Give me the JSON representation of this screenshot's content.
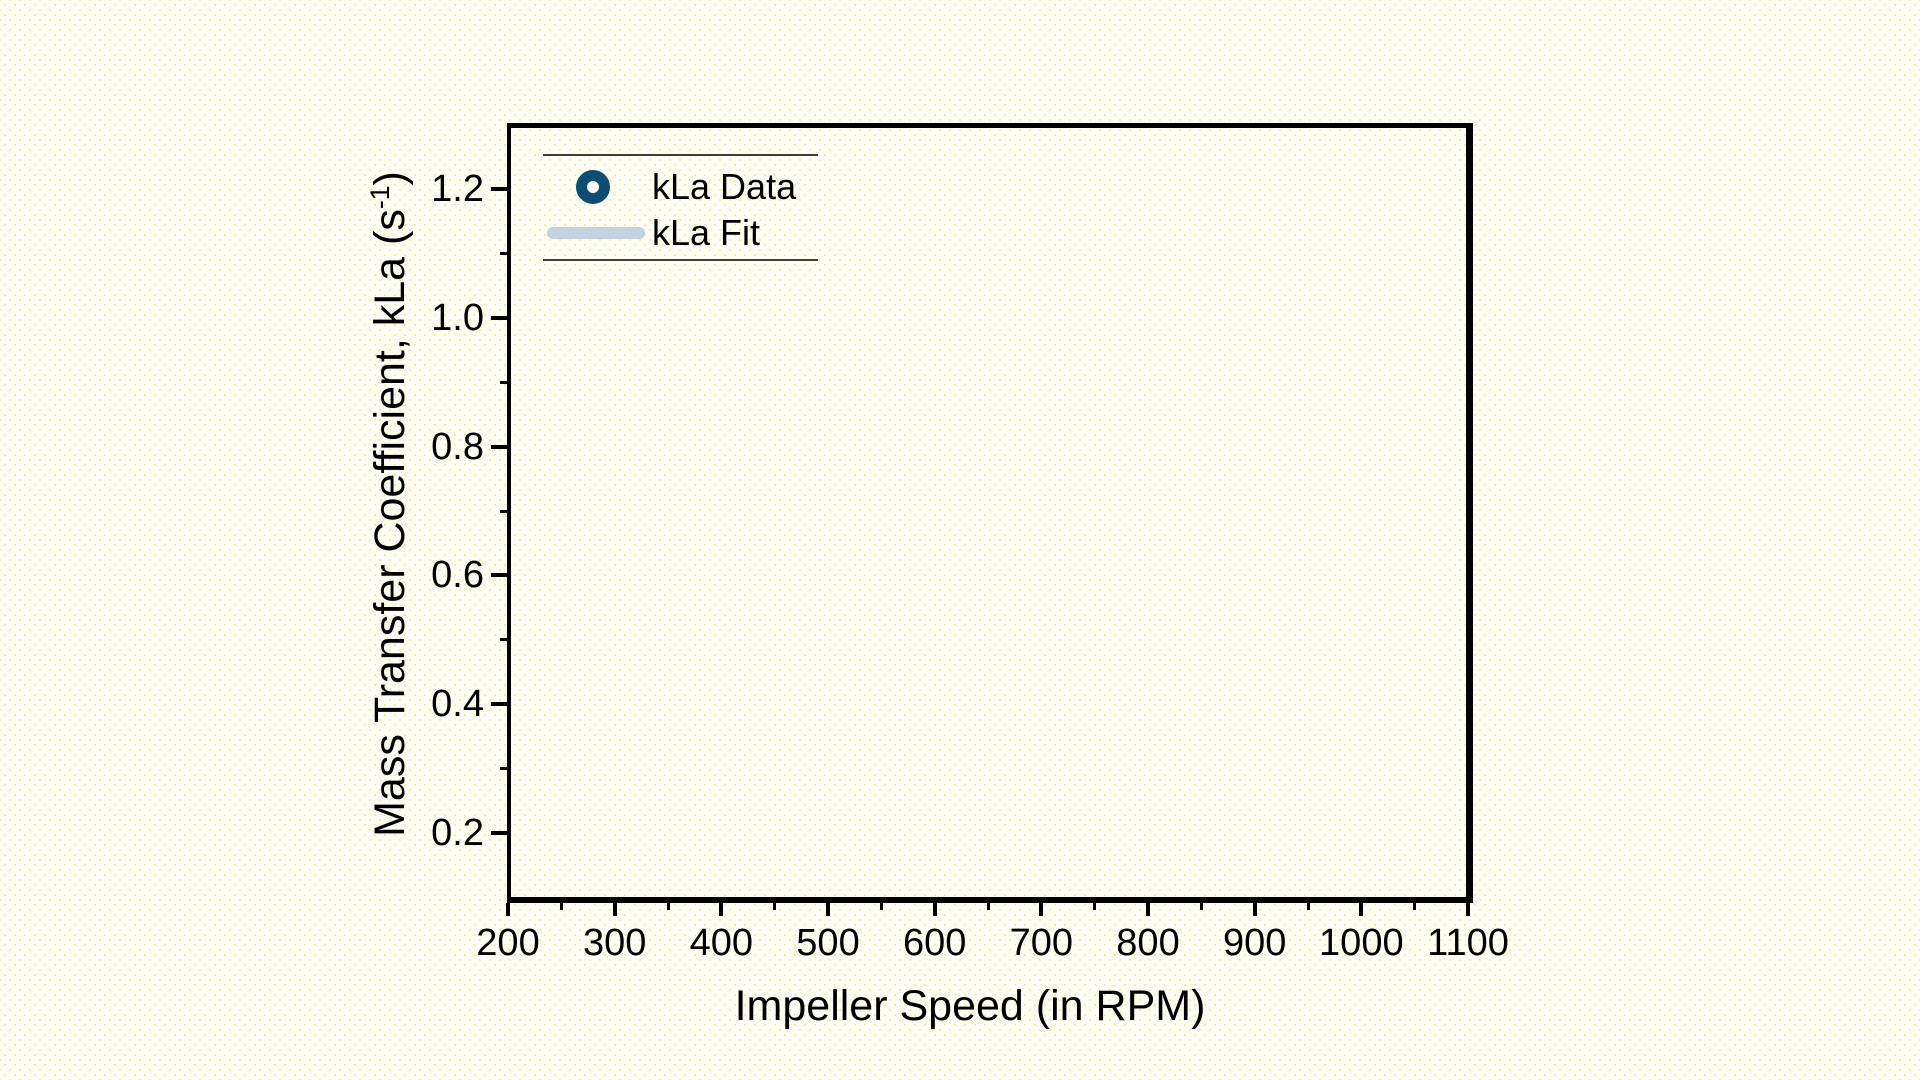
{
  "colors": {
    "background": "#fdfdf5",
    "background_dot": "#f5eda0",
    "axis": "#000000",
    "text": "#000000",
    "legend_border": "#3e3e32",
    "kla_data_marker": "#0d4d73",
    "kla_fit_line": "#c3d2df"
  },
  "legend": {
    "position": "top-left",
    "items": [
      {
        "label": "kLa Data",
        "type": "scatter-marker",
        "marker": "open-circle",
        "color": "#0d4d73"
      },
      {
        "label": "kLa Fit",
        "type": "line-sample",
        "color": "#c3d2df"
      }
    ]
  },
  "chart_data": {
    "type": "scatter",
    "title": "",
    "xlabel": "Impeller Speed (in RPM)",
    "ylabel": "Mass Transfer Coefficient, kLa (s⁻¹)",
    "ylabel_parts": {
      "pre": "Mass Transfer Coefficient, kLa (s",
      "sup": "-1",
      "post": ")"
    },
    "xlim": [
      200,
      1100
    ],
    "ylim": [
      0.1,
      1.3
    ],
    "grid": false,
    "legend_position": "top-left",
    "x_ticks": {
      "major": [
        200,
        300,
        400,
        500,
        600,
        700,
        800,
        900,
        1000,
        1100
      ],
      "major_labels": [
        "200",
        "300",
        "400",
        "500",
        "600",
        "700",
        "800",
        "900",
        "1000",
        "1100"
      ],
      "minor": [
        250,
        350,
        450,
        550,
        650,
        750,
        850,
        950,
        1050
      ]
    },
    "y_ticks": {
      "major": [
        0.2,
        0.4,
        0.6,
        0.8,
        1.0,
        1.2
      ],
      "major_labels": [
        "0.2",
        "0.4",
        "0.6",
        "0.8",
        "1.0",
        "1.2"
      ],
      "minor": [
        0.3,
        0.5,
        0.7,
        0.9,
        1.1
      ]
    },
    "series": [
      {
        "name": "kLa Data",
        "type": "scatter",
        "marker": "open-circle",
        "color": "#0d4d73",
        "x": [],
        "y": []
      },
      {
        "name": "kLa Fit",
        "type": "line",
        "color": "#c3d2df",
        "x": [],
        "y": []
      }
    ]
  }
}
